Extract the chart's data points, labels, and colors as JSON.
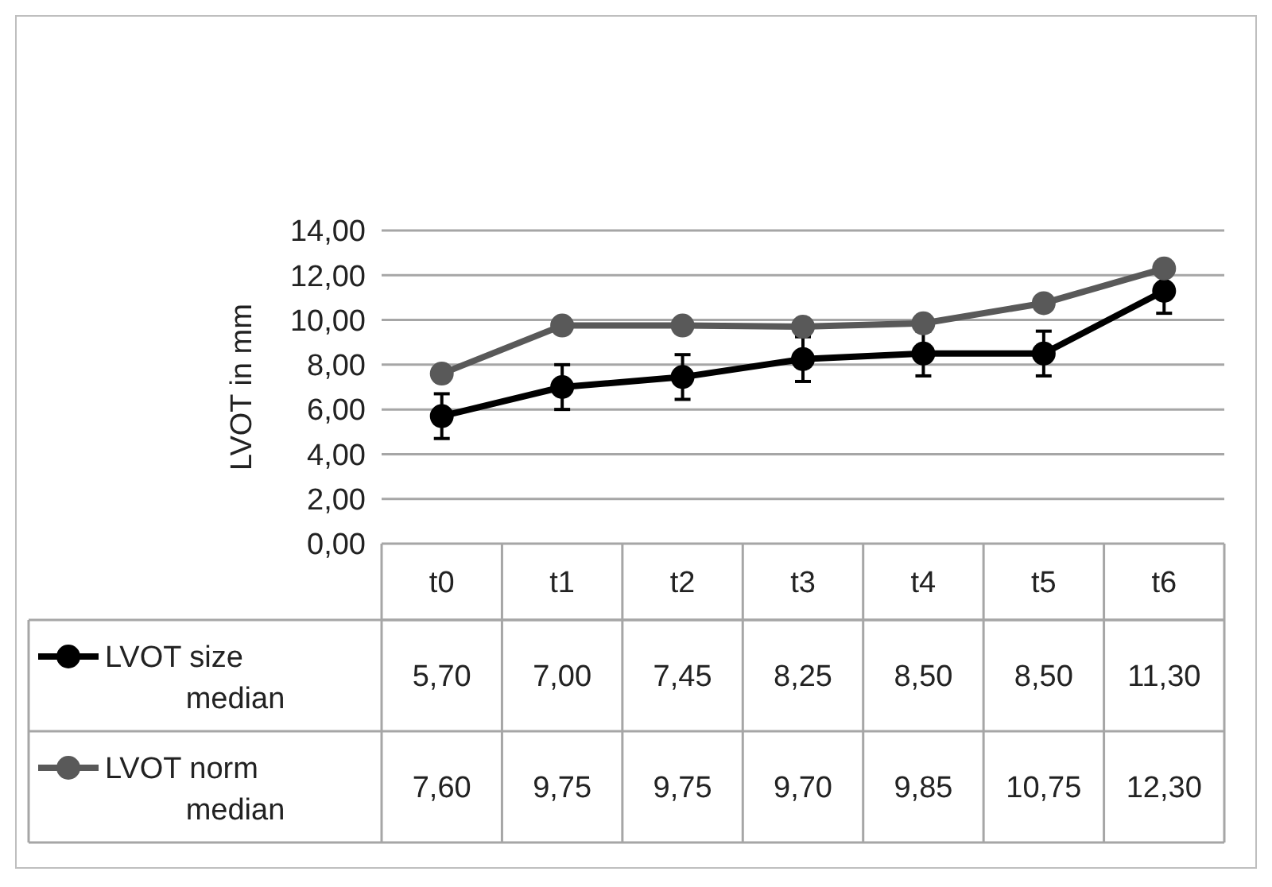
{
  "chart_data": {
    "type": "line",
    "ylabel": "LVOT in mm",
    "categories": [
      "t0",
      "t1",
      "t2",
      "t3",
      "t4",
      "t5",
      "t6"
    ],
    "ylim": [
      0,
      14
    ],
    "yticks": [
      {
        "value": 0,
        "label": "0,00"
      },
      {
        "value": 2,
        "label": "2,00"
      },
      {
        "value": 4,
        "label": "4,00"
      },
      {
        "value": 6,
        "label": "6,00"
      },
      {
        "value": 8,
        "label": "8,00"
      },
      {
        "value": 10,
        "label": "10,00"
      },
      {
        "value": 12,
        "label": "12,00"
      },
      {
        "value": 14,
        "label": "14,00"
      }
    ],
    "grid": "y",
    "marker": "circle",
    "line_style": "solid",
    "legend": "bottom left",
    "series": [
      {
        "name": "LVOT size median",
        "color": "#000000",
        "values": [
          5.7,
          7.0,
          7.45,
          8.25,
          8.5,
          8.5,
          11.3
        ],
        "errors": [
          1,
          1,
          1,
          1,
          1,
          1,
          1
        ],
        "value_labels": [
          "5,70",
          "7,00",
          "7,45",
          "8,25",
          "8,50",
          "8,50",
          "11,30"
        ]
      },
      {
        "name": "LVOT norm median",
        "color": "#595959",
        "values": [
          7.6,
          9.75,
          9.75,
          9.7,
          9.85,
          10.75,
          12.3
        ],
        "value_labels": [
          "7,60",
          "9,75",
          "9,75",
          "9,70",
          "9,85",
          "10,75",
          "12,30"
        ]
      }
    ]
  }
}
